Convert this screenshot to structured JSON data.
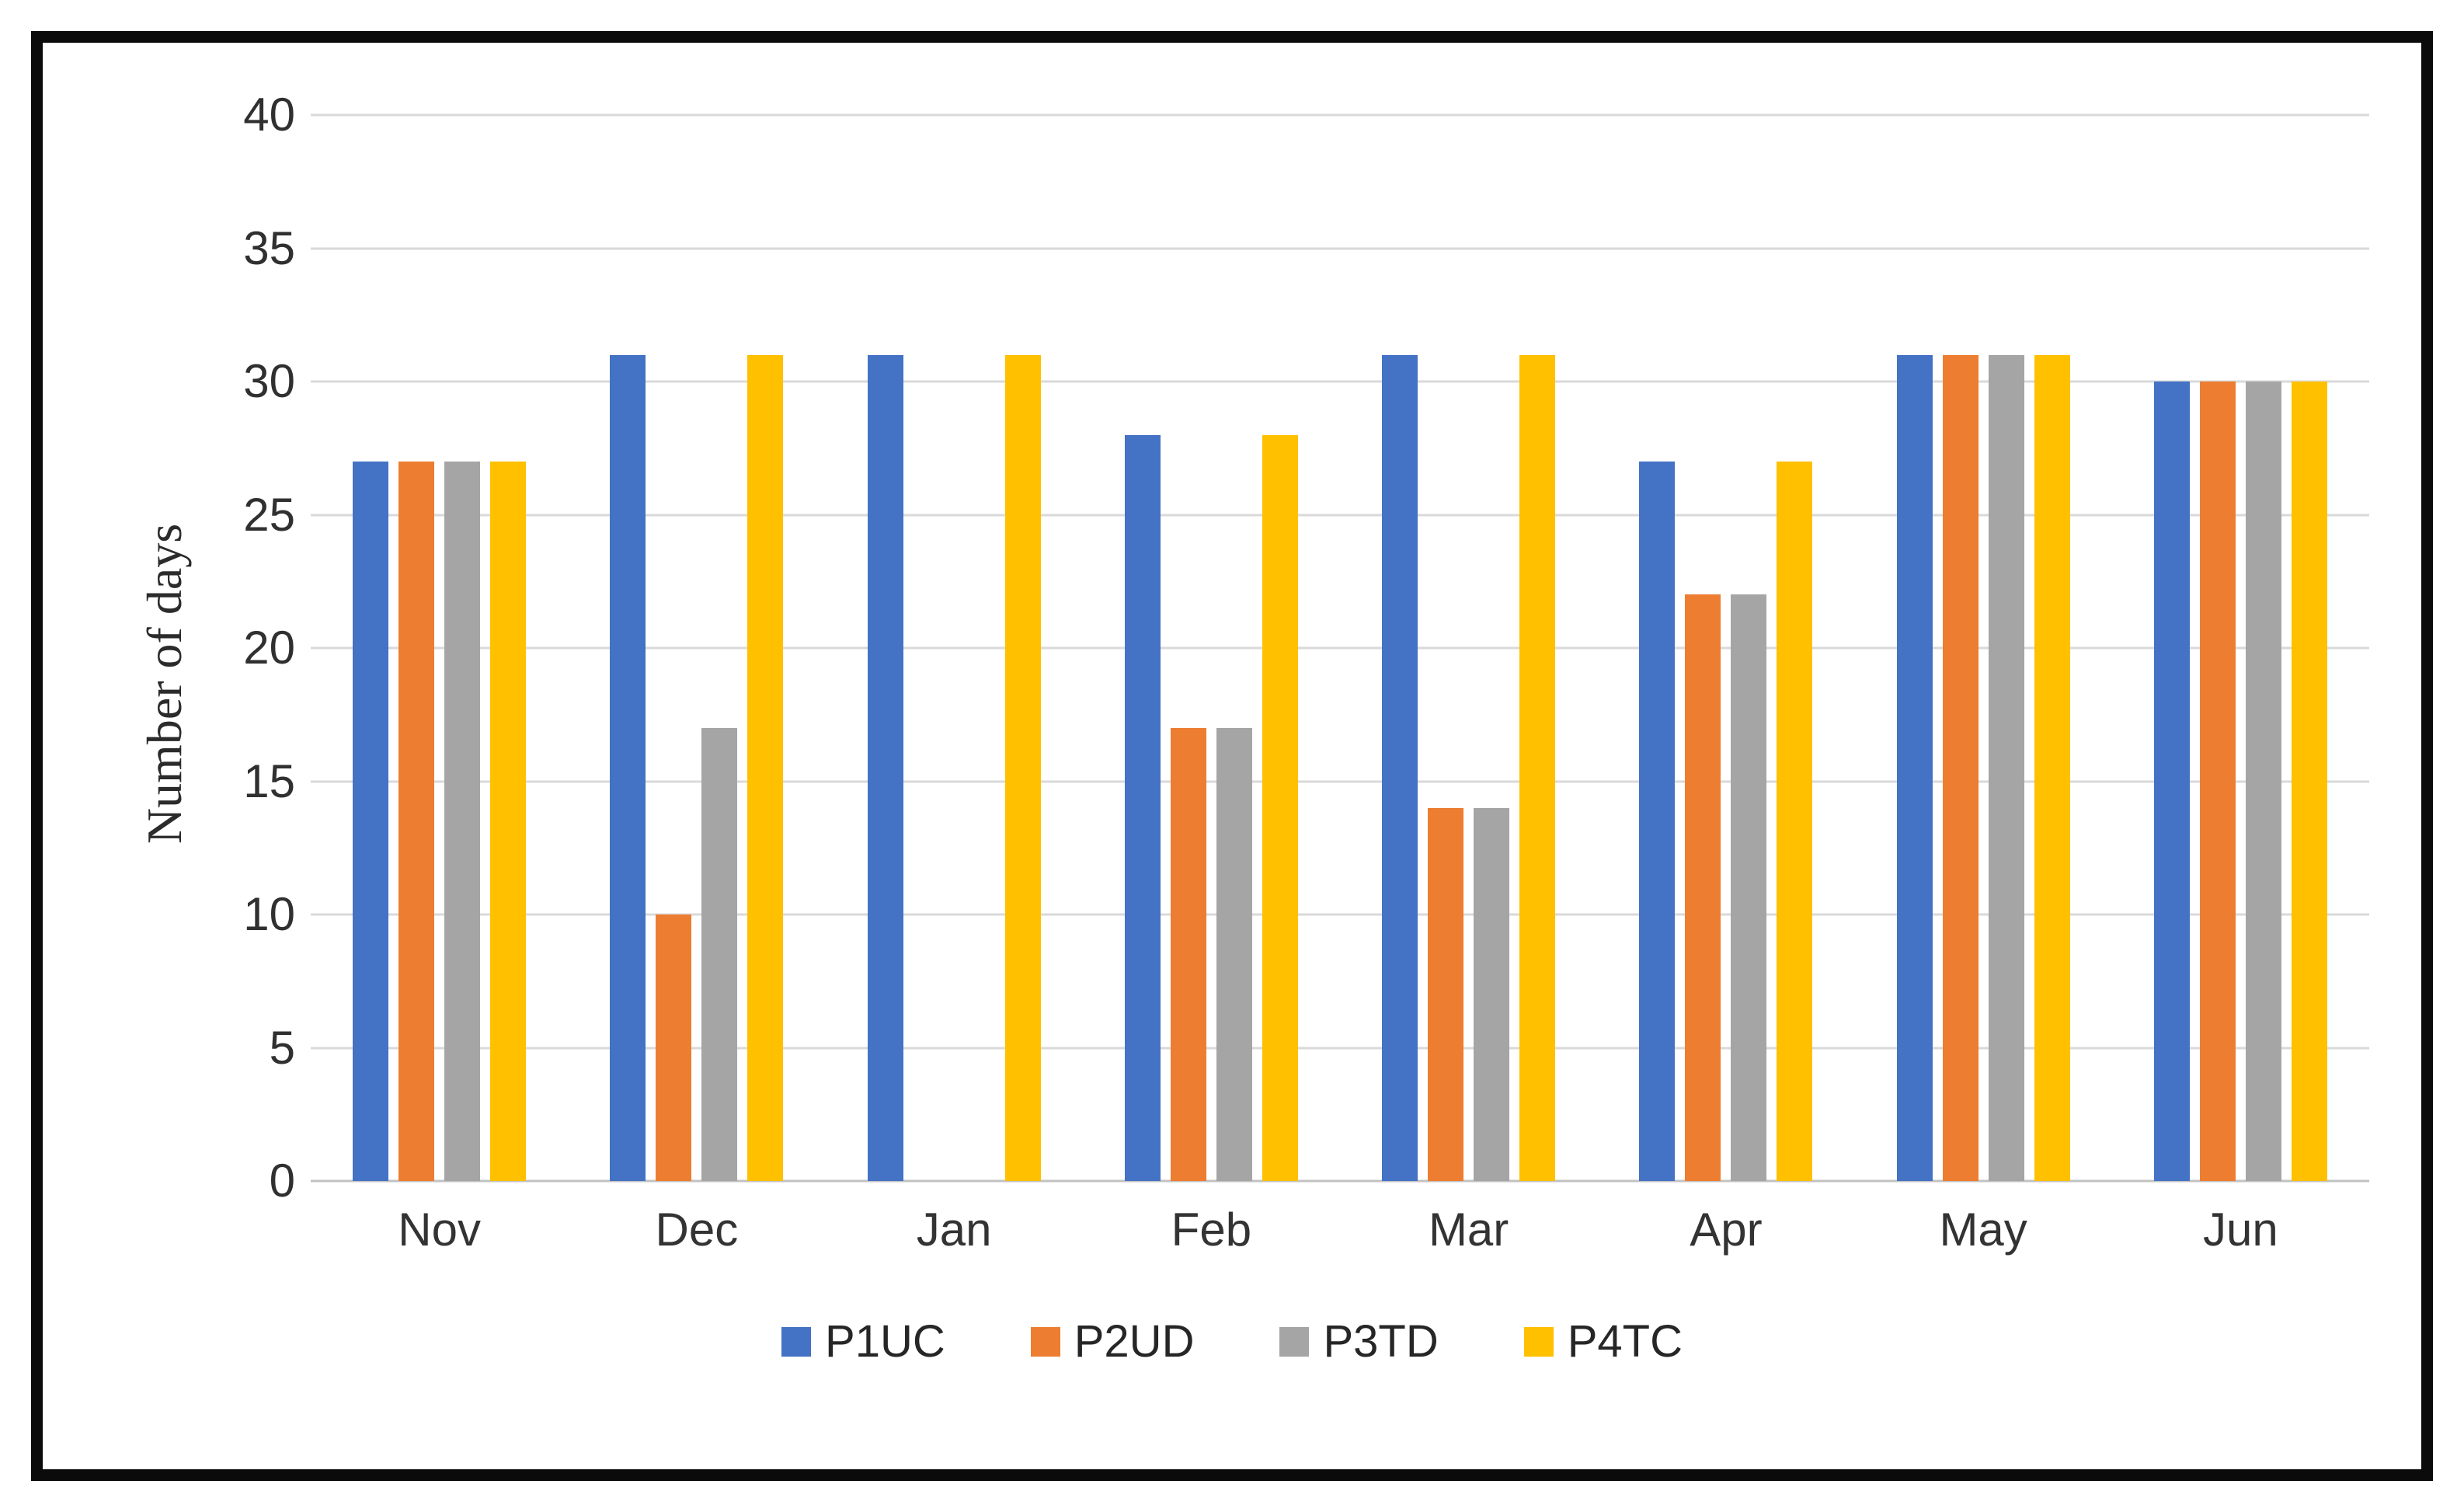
{
  "chart_data": {
    "type": "bar",
    "title": "",
    "categories": [
      "Nov",
      "Dec",
      "Jan",
      "Feb",
      "Mar",
      "Apr",
      "May",
      "Jun"
    ],
    "series": [
      {
        "name": "P1UC",
        "color": "#4472C4",
        "values": [
          27,
          31,
          31,
          28,
          31,
          27,
          31,
          30
        ]
      },
      {
        "name": "P2UD",
        "color": "#ED7D31",
        "values": [
          27,
          10,
          0,
          17,
          14,
          22,
          31,
          30
        ]
      },
      {
        "name": "P3TD",
        "color": "#A5A5A5",
        "values": [
          27,
          17,
          0,
          17,
          14,
          22,
          31,
          30
        ]
      },
      {
        "name": "P4TC",
        "color": "#FFC000",
        "values": [
          27,
          31,
          31,
          28,
          31,
          27,
          31,
          30
        ]
      }
    ],
    "xlabel": "",
    "ylabel": "Number of days",
    "ylim": [
      0,
      40
    ],
    "yticks": [
      0,
      5,
      10,
      15,
      20,
      25,
      30,
      35,
      40
    ],
    "grid": true,
    "legend_position": "bottom",
    "colors": {
      "gridline": "#D9D9D9",
      "axis_line": "#C2C2C2",
      "tick_text": "#303030",
      "background": "#FFFFFF",
      "frame": "#0B0B0B"
    }
  }
}
